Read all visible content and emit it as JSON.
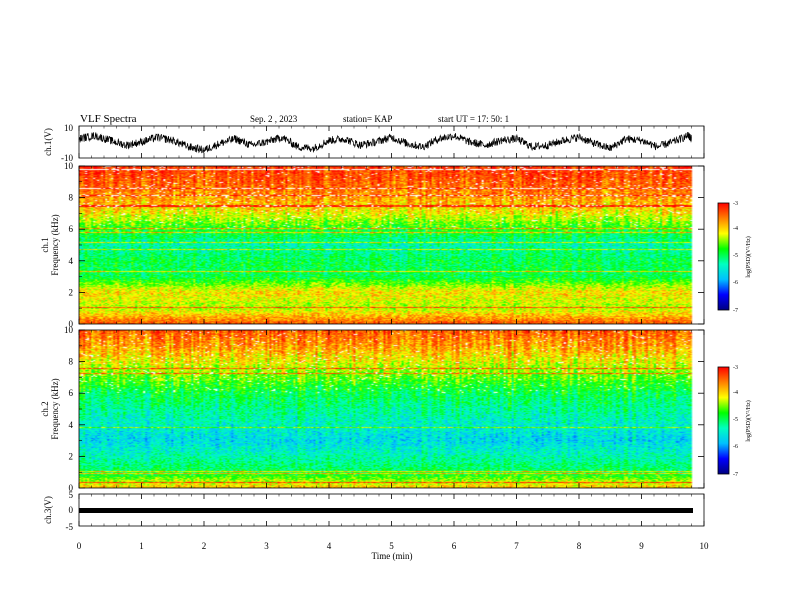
{
  "header": {
    "title": "VLF Spectra",
    "date": "Sep. 2  , 2023",
    "station": "station= KAP",
    "start": "start  UT  =    17: 50: 1"
  },
  "chart_data": [
    {
      "type": "line",
      "name": "ch.1 waveform",
      "ylabel": "ch.1(V)",
      "xlim": [
        0,
        10
      ],
      "ylim": [
        -10,
        10
      ],
      "yticks": [
        "10",
        "-10"
      ],
      "x": [
        0,
        0.25,
        0.5,
        0.75,
        1.0,
        1.25,
        1.5,
        1.75,
        2.0,
        2.25,
        2.5,
        2.75,
        3.0,
        3.25,
        3.5,
        3.75,
        4.0,
        4.25,
        4.5,
        4.75,
        5.0,
        5.25,
        5.5,
        5.75,
        6.0,
        6.25,
        6.5,
        6.75,
        7.0,
        7.25,
        7.5,
        7.75,
        8.0,
        8.25,
        8.5,
        8.75,
        9.0,
        9.25,
        9.5,
        9.75,
        9.8
      ],
      "values": [
        2,
        4,
        1,
        -2,
        0,
        3,
        1,
        -3,
        -5,
        -1,
        2,
        -2,
        0,
        3,
        -3,
        -4,
        1,
        2,
        -2,
        0,
        3,
        -1,
        -3,
        2,
        4,
        0,
        -2,
        1,
        2,
        -3,
        -2,
        1,
        3,
        -1,
        -4,
        2,
        1,
        -3,
        0,
        4,
        2
      ]
    },
    {
      "type": "heatmap",
      "name": "ch.1 spectrogram",
      "ylabel": "ch.1\nFrequency  (kHz)",
      "xlim": [
        0,
        10
      ],
      "ylim": [
        0,
        10
      ],
      "yticks": [
        "0",
        "2",
        "4",
        "6",
        "8",
        "10"
      ],
      "colorbar": {
        "label": "log(PSD)(V²/Hz)",
        "range": [
          -7,
          -3
        ],
        "ticks": [
          "-3",
          "-4",
          "-5",
          "-6",
          "-7"
        ]
      },
      "freq_kHz": [
        0,
        1,
        2,
        3,
        4,
        5,
        6,
        7,
        8,
        9,
        10
      ],
      "mean_logPSD": [
        -3.5,
        -4.4,
        -4.1,
        -5.0,
        -5.0,
        -5.3,
        -4.8,
        -4.2,
        -3.8,
        -3.5,
        -3.3
      ]
    },
    {
      "type": "heatmap",
      "name": "ch.2 spectrogram",
      "ylabel": "ch.2\nFrequency  (kHz)",
      "xlim": [
        0,
        10
      ],
      "ylim": [
        0,
        10
      ],
      "yticks": [
        "0",
        "2",
        "4",
        "6",
        "8",
        "10"
      ],
      "colorbar": {
        "label": "log(PSD)(V²/Hz)",
        "range": [
          -7,
          -3
        ],
        "ticks": [
          "-3",
          "-4",
          "-5",
          "-6",
          "-7"
        ]
      },
      "freq_kHz": [
        0,
        1,
        2,
        3,
        4,
        5,
        6,
        7,
        8,
        9,
        10
      ],
      "mean_logPSD": [
        -4.0,
        -5.0,
        -5.3,
        -5.6,
        -5.4,
        -5.2,
        -5.0,
        -4.6,
        -4.2,
        -3.8,
        -3.5
      ]
    },
    {
      "type": "line",
      "name": "ch.3 waveform",
      "ylabel": "ch.3(V)",
      "xlim": [
        0,
        10
      ],
      "ylim": [
        -5,
        5
      ],
      "yticks": [
        "5",
        "0",
        "-5"
      ],
      "x": [
        0,
        9.8
      ],
      "values": [
        -1,
        -1
      ]
    }
  ],
  "xaxis": {
    "label": "Time  (min)",
    "ticks": [
      "0",
      "1",
      "2",
      "3",
      "4",
      "5",
      "6",
      "7",
      "8",
      "9",
      "10"
    ]
  },
  "colors": {
    "colormap": [
      "#000080",
      "#0000ff",
      "#00c0ff",
      "#00ffc0",
      "#00ff00",
      "#ffff00",
      "#ff8000",
      "#ff0000",
      "#ffffff"
    ]
  }
}
